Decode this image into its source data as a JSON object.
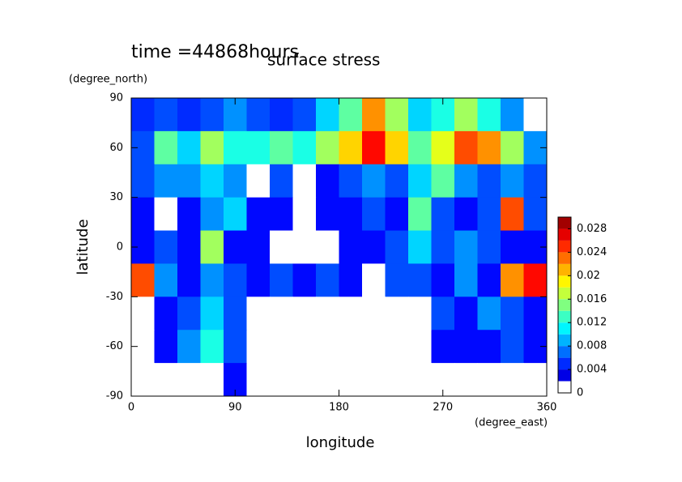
{
  "chart_data": {
    "type": "heatmap",
    "title": "surface stress",
    "subtitle": "time =44868hours",
    "x_label": "longitude",
    "x_unit": "(degree_east)",
    "y_label": "latitude",
    "y_unit": "(degree_north)",
    "x": [
      10,
      30,
      50,
      70,
      90,
      110,
      130,
      150,
      170,
      190,
      210,
      230,
      250,
      270,
      290,
      310,
      330,
      350
    ],
    "y": [
      80,
      60,
      40,
      20,
      0,
      -20,
      -40,
      -60,
      -80
    ],
    "z": [
      [
        0.005,
        0.006,
        0.005,
        0.006,
        0.008,
        0.006,
        0.005,
        0.006,
        0.01,
        0.014,
        0.022,
        0.016,
        0.01,
        0.012,
        0.016,
        0.012,
        0.008,
        0
      ],
      [
        0.006,
        0.014,
        0.01,
        0.016,
        0.012,
        0.012,
        0.014,
        0.012,
        0.016,
        0.02,
        0.026,
        0.02,
        0.014,
        0.018,
        0.024,
        0.022,
        0.016,
        0.008
      ],
      [
        0.006,
        0.008,
        0.008,
        0.01,
        0.008,
        0,
        0.006,
        0,
        0.004,
        0.006,
        0.008,
        0.006,
        0.01,
        0.014,
        0.008,
        0.006,
        0.008,
        0.006
      ],
      [
        0.004,
        0,
        0.004,
        0.008,
        0.01,
        0.004,
        0.004,
        0,
        0.004,
        0.004,
        0.006,
        0.004,
        0.014,
        0.006,
        0.004,
        0.006,
        0.024,
        0.006
      ],
      [
        0.004,
        0.006,
        0.004,
        0.016,
        0.004,
        0.004,
        0,
        0,
        0,
        0.004,
        0.004,
        0.006,
        0.01,
        0.006,
        0.008,
        0.006,
        0.004,
        0.004
      ],
      [
        0.024,
        0.008,
        0.004,
        0.008,
        0.006,
        0.004,
        0.006,
        0.004,
        0.006,
        0.004,
        0,
        0.006,
        0.006,
        0.004,
        0.008,
        0.004,
        0.022,
        0.026
      ],
      [
        0,
        0.004,
        0.006,
        0.01,
        0.006,
        0,
        0,
        0,
        0,
        0,
        0,
        0,
        0,
        0.006,
        0.004,
        0.008,
        0.006,
        0.004
      ],
      [
        0,
        0.004,
        0.008,
        0.012,
        0.006,
        0,
        0,
        0,
        0,
        0,
        0,
        0,
        0,
        0.004,
        0.004,
        0.004,
        0.006,
        0.004
      ],
      [
        0,
        0,
        0,
        0,
        0.004,
        0,
        0,
        0,
        0,
        0,
        0,
        0,
        0,
        0,
        0,
        0,
        0,
        0
      ]
    ],
    "xlim": [
      0,
      360
    ],
    "xticks": [
      0,
      90,
      180,
      270,
      360
    ],
    "ylim": [
      -90,
      90
    ],
    "yticks": [
      90,
      60,
      30,
      0,
      -30,
      -60,
      -90
    ],
    "zlim": [
      0,
      0.03
    ],
    "zticks": [
      0,
      0.004,
      0.008,
      0.012,
      0.016,
      0.02,
      0.024,
      0.028
    ]
  }
}
